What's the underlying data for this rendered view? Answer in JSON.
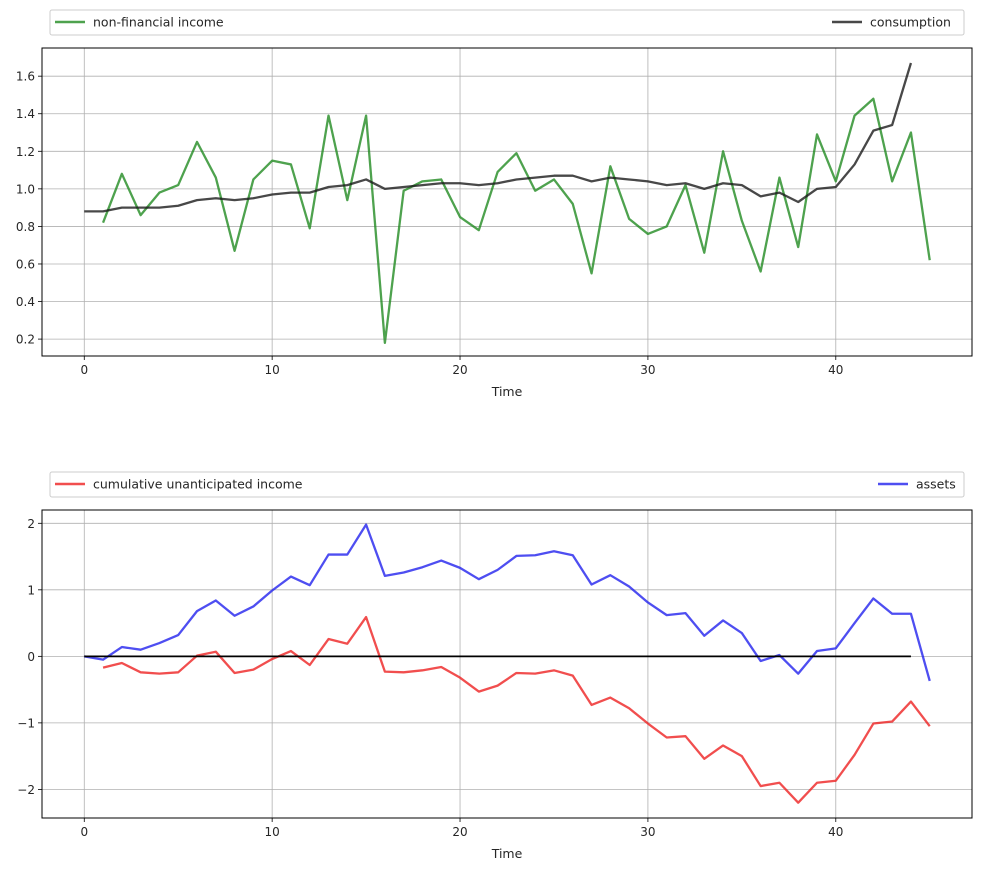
{
  "chart_data": [
    {
      "type": "line",
      "xlabel": "Time",
      "ylabel": "",
      "xlim": [
        -2.25,
        47.25
      ],
      "ylim": [
        0.11,
        1.75
      ],
      "xticks": [
        0,
        10,
        20,
        30,
        40
      ],
      "yticks": [
        0.2,
        0.4,
        0.6,
        0.8,
        1.0,
        1.2,
        1.4,
        1.6
      ],
      "ytick_labels": [
        "0.2",
        "0.4",
        "0.6",
        "0.8",
        "1.0",
        "1.2",
        "1.4",
        "1.6"
      ],
      "grid": true,
      "legend_placement": "above-top, expanded",
      "series": [
        {
          "name": "non-financial income",
          "color": "#228b22",
          "x": [
            1,
            2,
            3,
            4,
            5,
            6,
            7,
            8,
            9,
            10,
            11,
            12,
            13,
            14,
            15,
            16,
            17,
            18,
            19,
            20,
            21,
            22,
            23,
            24,
            25,
            26,
            27,
            28,
            29,
            30,
            31,
            32,
            33,
            34,
            35,
            36,
            37,
            38,
            39,
            40,
            41,
            42,
            43,
            44,
            45
          ],
          "values": [
            0.82,
            1.08,
            0.86,
            0.98,
            1.02,
            1.25,
            1.06,
            0.67,
            1.05,
            1.15,
            1.13,
            0.79,
            1.39,
            0.94,
            1.39,
            0.18,
            0.99,
            1.04,
            1.05,
            0.85,
            0.78,
            1.09,
            1.19,
            0.99,
            1.05,
            0.92,
            0.55,
            1.12,
            0.84,
            0.76,
            0.8,
            1.02,
            0.66,
            1.2,
            0.83,
            0.56,
            1.06,
            0.69,
            1.29,
            1.04,
            1.39,
            1.48,
            1.04,
            1.3,
            0.62
          ]
        },
        {
          "name": "consumption",
          "color": "#1a1a1a",
          "x": [
            0,
            1,
            2,
            3,
            4,
            5,
            6,
            7,
            8,
            9,
            10,
            11,
            12,
            13,
            14,
            15,
            16,
            17,
            18,
            19,
            20,
            21,
            22,
            23,
            24,
            25,
            26,
            27,
            28,
            29,
            30,
            31,
            32,
            33,
            34,
            35,
            36,
            37,
            38,
            39,
            40,
            41,
            42,
            43,
            44
          ],
          "values": [
            0.88,
            0.88,
            0.9,
            0.9,
            0.9,
            0.91,
            0.94,
            0.95,
            0.94,
            0.95,
            0.97,
            0.98,
            0.98,
            1.01,
            1.02,
            1.05,
            1.0,
            1.01,
            1.02,
            1.03,
            1.03,
            1.02,
            1.03,
            1.05,
            1.06,
            1.07,
            1.07,
            1.04,
            1.06,
            1.05,
            1.04,
            1.02,
            1.03,
            1.0,
            1.03,
            1.02,
            0.96,
            0.98,
            0.93,
            1.0,
            1.01,
            1.13,
            1.31,
            1.34,
            1.67
          ]
        }
      ]
    },
    {
      "type": "line",
      "xlabel": "Time",
      "ylabel": "",
      "xlim": [
        -2.25,
        47.25
      ],
      "ylim": [
        -2.43,
        2.2
      ],
      "xticks": [
        0,
        10,
        20,
        30,
        40
      ],
      "yticks": [
        -2,
        -1,
        0,
        1,
        2
      ],
      "ytick_labels": [
        "−2",
        "−1",
        "0",
        "1",
        "2"
      ],
      "grid": true,
      "legend_placement": "above-top, expanded",
      "series": [
        {
          "name": "cumulative unanticipated income",
          "color": "#ee2222",
          "x": [
            1,
            2,
            3,
            4,
            5,
            6,
            7,
            8,
            9,
            10,
            11,
            12,
            13,
            14,
            15,
            16,
            17,
            18,
            19,
            20,
            21,
            22,
            23,
            24,
            25,
            26,
            27,
            28,
            29,
            30,
            31,
            32,
            33,
            34,
            35,
            36,
            37,
            38,
            39,
            40,
            41,
            42,
            43,
            44,
            45
          ],
          "values": [
            -0.17,
            -0.1,
            -0.24,
            -0.26,
            -0.24,
            0.01,
            0.07,
            -0.25,
            -0.2,
            -0.04,
            0.08,
            -0.13,
            0.26,
            0.19,
            0.59,
            -0.23,
            -0.24,
            -0.21,
            -0.16,
            -0.32,
            -0.53,
            -0.44,
            -0.25,
            -0.26,
            -0.21,
            -0.29,
            -0.73,
            -0.62,
            -0.78,
            -1.01,
            -1.22,
            -1.2,
            -1.54,
            -1.34,
            -1.5,
            -1.95,
            -1.9,
            -2.2,
            -1.9,
            -1.87,
            -1.48,
            -1.01,
            -0.98,
            -0.68,
            -1.05
          ]
        },
        {
          "name": "assets",
          "color": "#2222ee",
          "x": [
            0,
            1,
            2,
            3,
            4,
            5,
            6,
            7,
            8,
            9,
            10,
            11,
            12,
            13,
            14,
            15,
            16,
            17,
            18,
            19,
            20,
            21,
            22,
            23,
            24,
            25,
            26,
            27,
            28,
            29,
            30,
            31,
            32,
            33,
            34,
            35,
            36,
            37,
            38,
            39,
            40,
            41,
            42,
            43,
            44,
            45
          ],
          "values": [
            0.0,
            -0.05,
            0.14,
            0.1,
            0.2,
            0.32,
            0.68,
            0.84,
            0.61,
            0.75,
            0.99,
            1.2,
            1.07,
            1.53,
            1.53,
            1.98,
            1.21,
            1.26,
            1.34,
            1.44,
            1.33,
            1.16,
            1.3,
            1.51,
            1.52,
            1.58,
            1.52,
            1.08,
            1.22,
            1.05,
            0.81,
            0.62,
            0.65,
            0.31,
            0.54,
            0.35,
            -0.07,
            0.02,
            -0.26,
            0.08,
            0.12,
            0.5,
            0.87,
            0.64,
            0.64,
            -0.37
          ]
        },
        {
          "name": "",
          "color": "#000000",
          "x": [
            0,
            44
          ],
          "values": [
            0,
            0
          ]
        }
      ]
    }
  ]
}
